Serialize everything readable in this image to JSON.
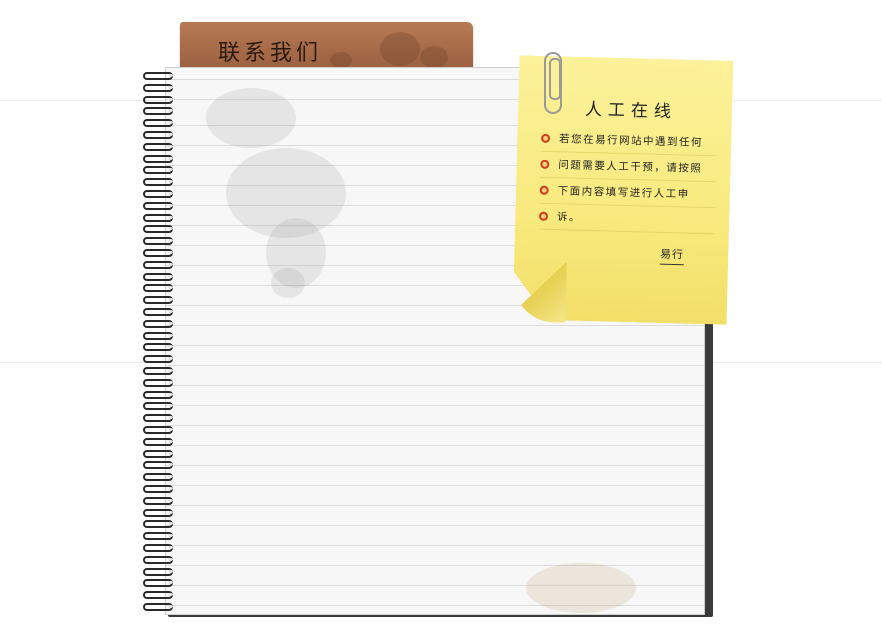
{
  "tab": {
    "label": "联系我们"
  },
  "note": {
    "title": "人工在线",
    "lines": [
      "若您在易行网站中遇到任何",
      "问题需要人工干预，请按照",
      "下面内容填写进行人工申",
      "诉。"
    ],
    "signature": "易行"
  },
  "colors": {
    "tab": "#a66a48",
    "note": "#f8ea7e",
    "bullet": "#d23b1f",
    "paper": "#f7f7f7"
  }
}
